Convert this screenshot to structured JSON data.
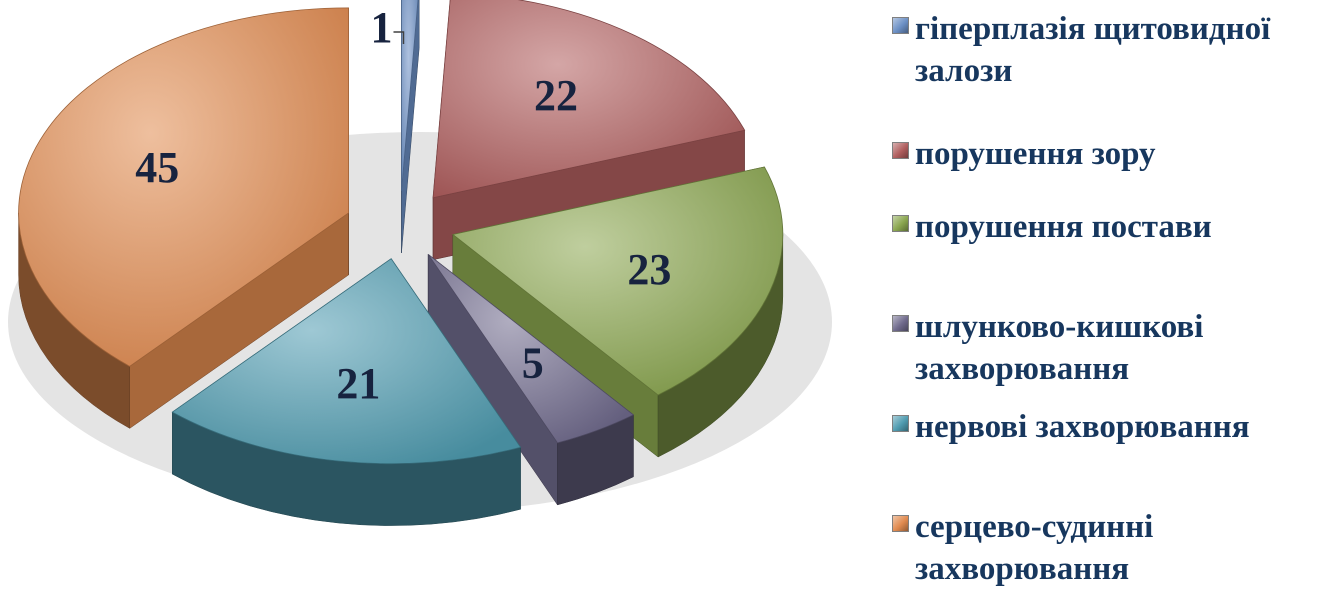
{
  "chart_data": {
    "type": "pie",
    "style": "3d-exploded",
    "categories": [
      "гіперплазія щитовидної залози",
      "порушення зору",
      "порушення постави",
      "шлунково-кишкові захворювання",
      "нервові захворювання",
      "серцево-судинні захворювання"
    ],
    "values": [
      1,
      22,
      23,
      5,
      21,
      45
    ],
    "data_labels": [
      "1",
      "22",
      "23",
      "5",
      "21",
      "45"
    ],
    "legend_position": "right",
    "colors": [
      "#6b8fc4",
      "#b05e5e",
      "#8aa64f",
      "#6f6a8c",
      "#4f9bb0",
      "#e08a4f"
    ]
  }
}
